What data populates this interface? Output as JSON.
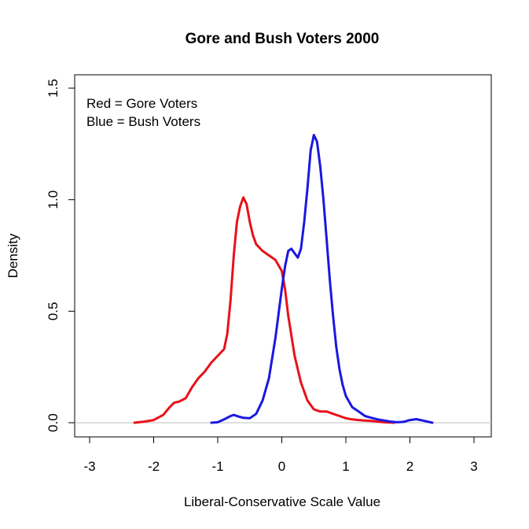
{
  "chart_data": {
    "type": "line",
    "title": "Gore and Bush Voters 2000",
    "xlabel": "Liberal-Conservative Scale Value",
    "ylabel": "Density",
    "xlim": [
      -3,
      3
    ],
    "ylim": [
      0,
      1.5
    ],
    "x_ticks": [
      "-3",
      "-2",
      "-1",
      "0",
      "1",
      "2",
      "3"
    ],
    "y_ticks": [
      "0.0",
      "0.5",
      "1.0",
      "1.5"
    ],
    "grid": false,
    "baseline_y": 0,
    "legend": {
      "placement": "top-left",
      "lines": [
        "Red = Gore Voters",
        "Blue = Bush Voters"
      ]
    },
    "series": [
      {
        "color": "#e8111a",
        "x": [
          -2.3,
          -2.15,
          -2.0,
          -1.85,
          -1.75,
          -1.68,
          -1.6,
          -1.5,
          -1.4,
          -1.3,
          -1.2,
          -1.1,
          -1.0,
          -0.9,
          -0.85,
          -0.8,
          -0.75,
          -0.7,
          -0.65,
          -0.6,
          -0.55,
          -0.5,
          -0.45,
          -0.4,
          -0.3,
          -0.2,
          -0.1,
          0.0,
          0.05,
          0.1,
          0.2,
          0.3,
          0.4,
          0.5,
          0.6,
          0.7,
          0.8,
          0.9,
          1.0,
          1.1,
          1.2,
          1.3,
          1.4,
          1.5,
          1.6,
          1.75
        ],
        "y": [
          0.0,
          0.005,
          0.012,
          0.035,
          0.07,
          0.09,
          0.095,
          0.11,
          0.16,
          0.2,
          0.23,
          0.27,
          0.3,
          0.33,
          0.4,
          0.55,
          0.75,
          0.9,
          0.97,
          1.01,
          0.98,
          0.9,
          0.84,
          0.8,
          0.77,
          0.75,
          0.73,
          0.68,
          0.6,
          0.48,
          0.3,
          0.18,
          0.1,
          0.06,
          0.05,
          0.05,
          0.04,
          0.03,
          0.02,
          0.015,
          0.012,
          0.01,
          0.008,
          0.005,
          0.002,
          0.0
        ]
      },
      {
        "color": "#1a18e0",
        "x": [
          -1.1,
          -1.0,
          -0.9,
          -0.8,
          -0.75,
          -0.7,
          -0.6,
          -0.5,
          -0.4,
          -0.3,
          -0.2,
          -0.1,
          0.0,
          0.05,
          0.1,
          0.15,
          0.2,
          0.25,
          0.3,
          0.35,
          0.4,
          0.45,
          0.5,
          0.55,
          0.6,
          0.65,
          0.7,
          0.75,
          0.8,
          0.85,
          0.9,
          0.95,
          1.0,
          1.1,
          1.2,
          1.3,
          1.4,
          1.5,
          1.6,
          1.7,
          1.8,
          1.9,
          2.0,
          2.1,
          2.2,
          2.35
        ],
        "y": [
          0.0,
          0.002,
          0.015,
          0.03,
          0.035,
          0.03,
          0.022,
          0.02,
          0.04,
          0.1,
          0.2,
          0.38,
          0.6,
          0.7,
          0.77,
          0.78,
          0.76,
          0.74,
          0.78,
          0.9,
          1.05,
          1.22,
          1.29,
          1.26,
          1.15,
          1.0,
          0.82,
          0.64,
          0.48,
          0.34,
          0.24,
          0.17,
          0.12,
          0.07,
          0.05,
          0.03,
          0.022,
          0.015,
          0.01,
          0.005,
          0.002,
          0.004,
          0.012,
          0.016,
          0.01,
          0.0
        ]
      }
    ]
  }
}
